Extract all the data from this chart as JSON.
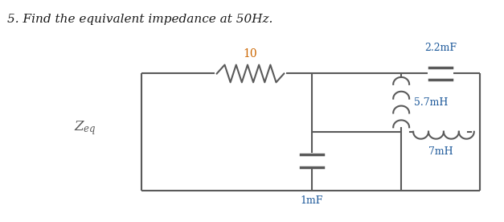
{
  "title": "5. Find the equivalent impedance at 50Hz.",
  "title_fontsize": 11,
  "title_color": "#1a1a1a",
  "background_color": "#ffffff",
  "line_color": "#5a5a5a",
  "line_width": 1.5,
  "label_color": "#cc6600",
  "label_color2": "#1a5799",
  "comp_label_color": "#1a5799",
  "resistor_label": "10",
  "cap22_label": "2.2mF",
  "ind57_label": "5.7mH",
  "cap1_label": "1mF",
  "ind7_label": "7mH",
  "zeq_label": "$Z_{eq}$"
}
